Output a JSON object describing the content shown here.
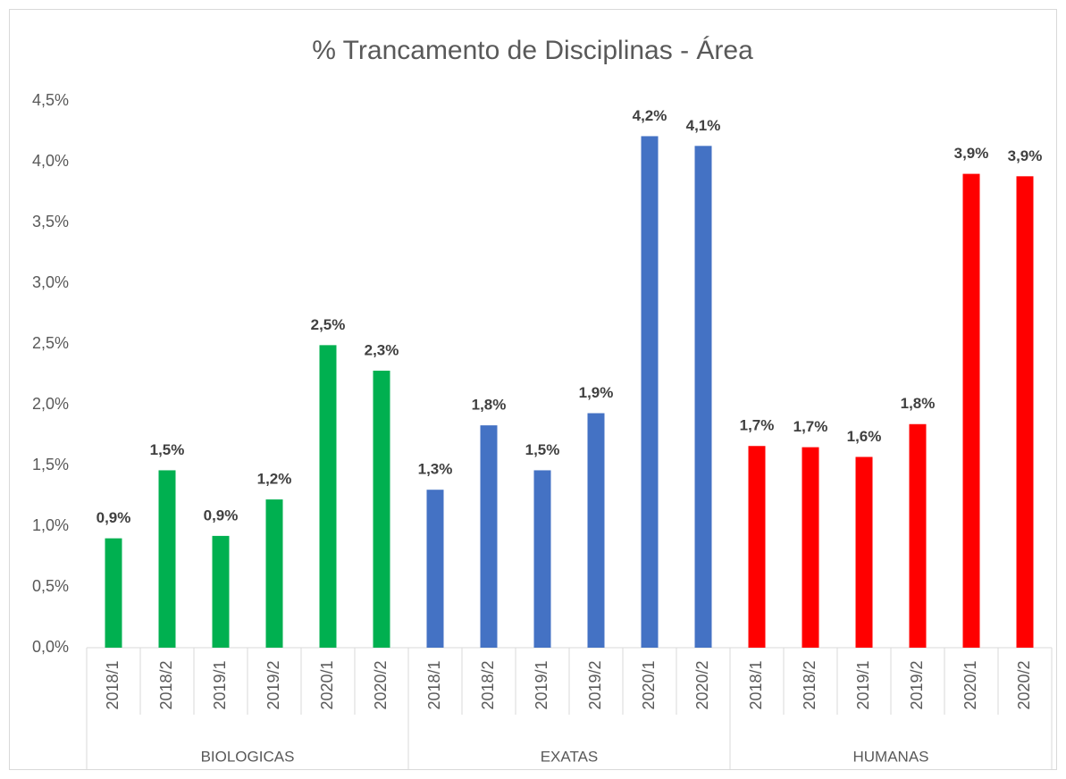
{
  "chart_data": {
    "type": "bar",
    "title": "% Trancamento de Disciplinas - Área",
    "groups": [
      {
        "name": "BIOLOGICAS",
        "color": "#00b050",
        "categories": [
          "2018/1",
          "2018/2",
          "2019/1",
          "2019/2",
          "2020/1",
          "2020/2"
        ],
        "values": [
          0.9,
          1.46,
          0.92,
          1.22,
          2.49,
          2.28
        ],
        "value_labels": [
          "0,9%",
          "1,5%",
          "0,9%",
          "1,2%",
          "2,5%",
          "2,3%"
        ]
      },
      {
        "name": "EXATAS",
        "color": "#4472c4",
        "categories": [
          "2018/1",
          "2018/2",
          "2019/1",
          "2019/2",
          "2020/1",
          "2020/2"
        ],
        "values": [
          1.3,
          1.83,
          1.46,
          1.93,
          4.21,
          4.13
        ],
        "value_labels": [
          "1,3%",
          "1,8%",
          "1,5%",
          "1,9%",
          "4,2%",
          "4,1%"
        ]
      },
      {
        "name": "HUMANAS",
        "color": "#ff0000",
        "categories": [
          "2018/1",
          "2018/2",
          "2019/1",
          "2019/2",
          "2020/1",
          "2020/2"
        ],
        "values": [
          1.66,
          1.65,
          1.57,
          1.84,
          3.9,
          3.88
        ],
        "value_labels": [
          "1,7%",
          "1,7%",
          "1,6%",
          "1,8%",
          "3,9%",
          "3,9%"
        ]
      }
    ],
    "ylim": [
      0,
      4.5
    ],
    "yticks": [
      {
        "value": 0,
        "label": "0,0%"
      },
      {
        "value": 0.5,
        "label": "0,5%"
      },
      {
        "value": 1,
        "label": "1,0%"
      },
      {
        "value": 1.5,
        "label": "1,5%"
      },
      {
        "value": 2,
        "label": "2,0%"
      },
      {
        "value": 2.5,
        "label": "2,5%"
      },
      {
        "value": 3,
        "label": "3,0%"
      },
      {
        "value": 3.5,
        "label": "3,5%"
      },
      {
        "value": 4,
        "label": "4,0%"
      },
      {
        "value": 4.5,
        "label": "4,5%"
      }
    ],
    "grid": false
  }
}
